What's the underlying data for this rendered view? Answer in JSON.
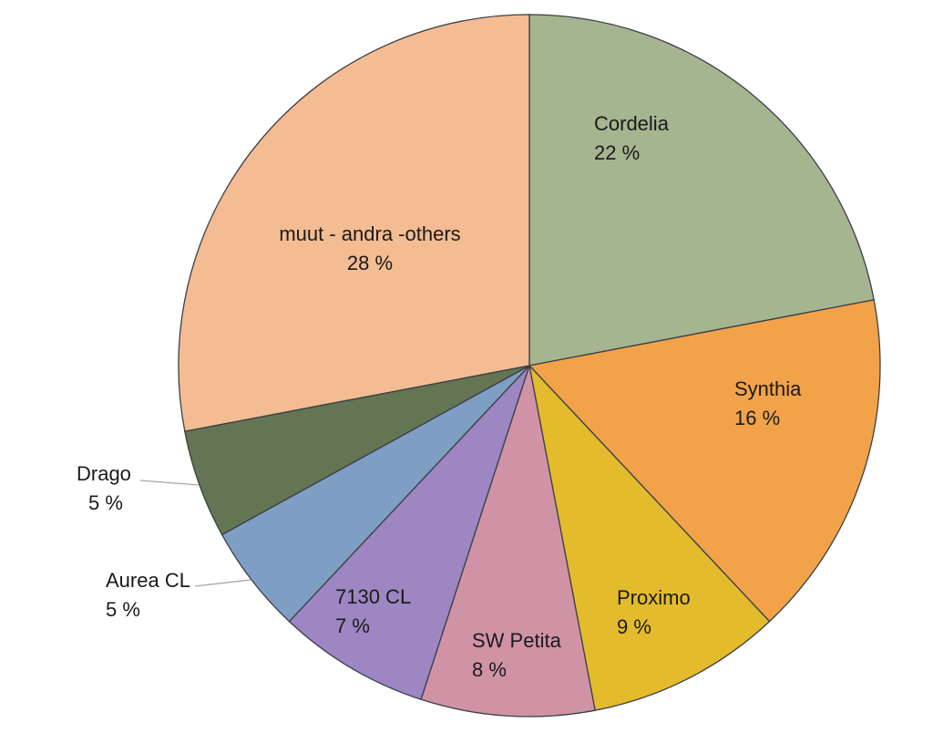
{
  "chart_data": {
    "type": "pie",
    "slices": [
      {
        "label": "Cordelia",
        "value": 22,
        "value_label": "22 %",
        "color": "#a5b590"
      },
      {
        "label": "Synthia",
        "value": 16,
        "value_label": "16 %",
        "color": "#f2a349"
      },
      {
        "label": "Proximo",
        "value": 9,
        "value_label": "9 %",
        "color": "#e4bb2c"
      },
      {
        "label": "SW Petita",
        "value": 8,
        "value_label": "8 %",
        "color": "#d093a6"
      },
      {
        "label": "7130 CL",
        "value": 7,
        "value_label": "7 %",
        "color": "#9d86c2"
      },
      {
        "label": "Aurea CL",
        "value": 5,
        "value_label": "5 %",
        "color": "#7f9ec3"
      },
      {
        "label": "Drago",
        "value": 5,
        "value_label": "5 %",
        "color": "#637552"
      },
      {
        "label": "muut - andra -others",
        "value": 28,
        "value_label": "28 %",
        "color": "#f4bc92"
      }
    ],
    "start": "12 o'clock",
    "direction": "clockwise"
  }
}
